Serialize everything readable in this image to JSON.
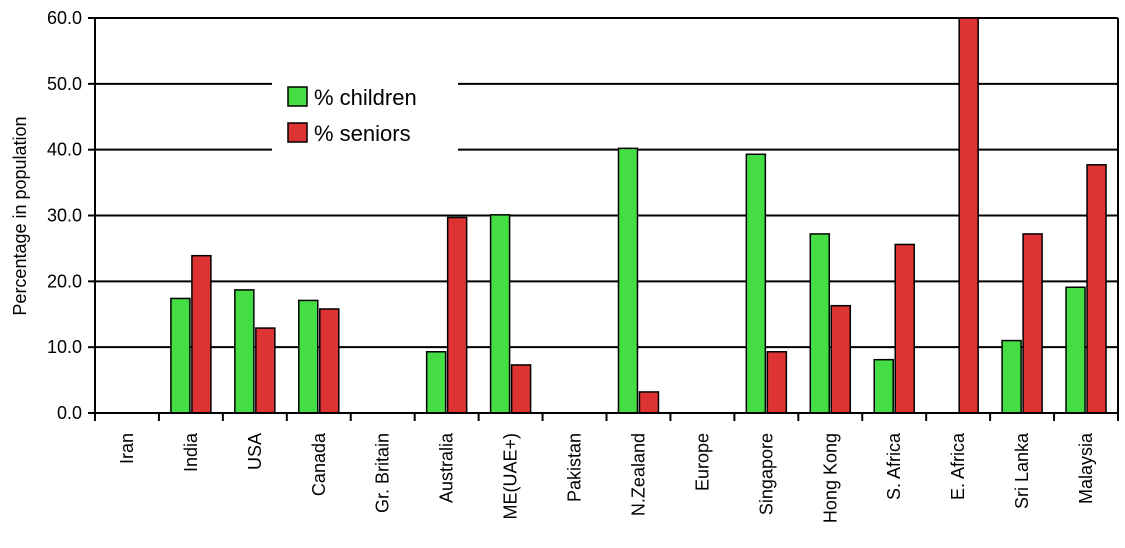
{
  "chart_data": {
    "type": "bar",
    "title": "",
    "xlabel": "",
    "ylabel": "Percentage in population",
    "ylim": [
      0,
      60
    ],
    "yticks": [
      "0.0",
      "10.0",
      "20.0",
      "30.0",
      "40.0",
      "50.0",
      "60.0"
    ],
    "grid": true,
    "legend_position": "top-left",
    "categories": [
      "Iran",
      "India",
      "USA",
      "Canada",
      "Gr. Britain",
      "Australia",
      "ME(UAE+)",
      "Pakistan",
      "N.Zealand",
      "Europe",
      "Singapore",
      "Hong Kong",
      "S. Africa",
      "E. Africa",
      "Sri Lanka",
      "Malaysia"
    ],
    "series": [
      {
        "name": "% children",
        "color": "#44dd44",
        "values": [
          0,
          17.4,
          18.7,
          17.1,
          0,
          9.3,
          30.1,
          0,
          40.2,
          0,
          39.3,
          27.2,
          8.1,
          0,
          11.0,
          19.1
        ]
      },
      {
        "name": "% seniors",
        "color": "#dd3333",
        "values": [
          0,
          23.9,
          12.9,
          15.8,
          0,
          29.7,
          7.3,
          0,
          3.2,
          0,
          9.3,
          16.3,
          25.6,
          60.0,
          27.2,
          37.7
        ]
      }
    ]
  }
}
